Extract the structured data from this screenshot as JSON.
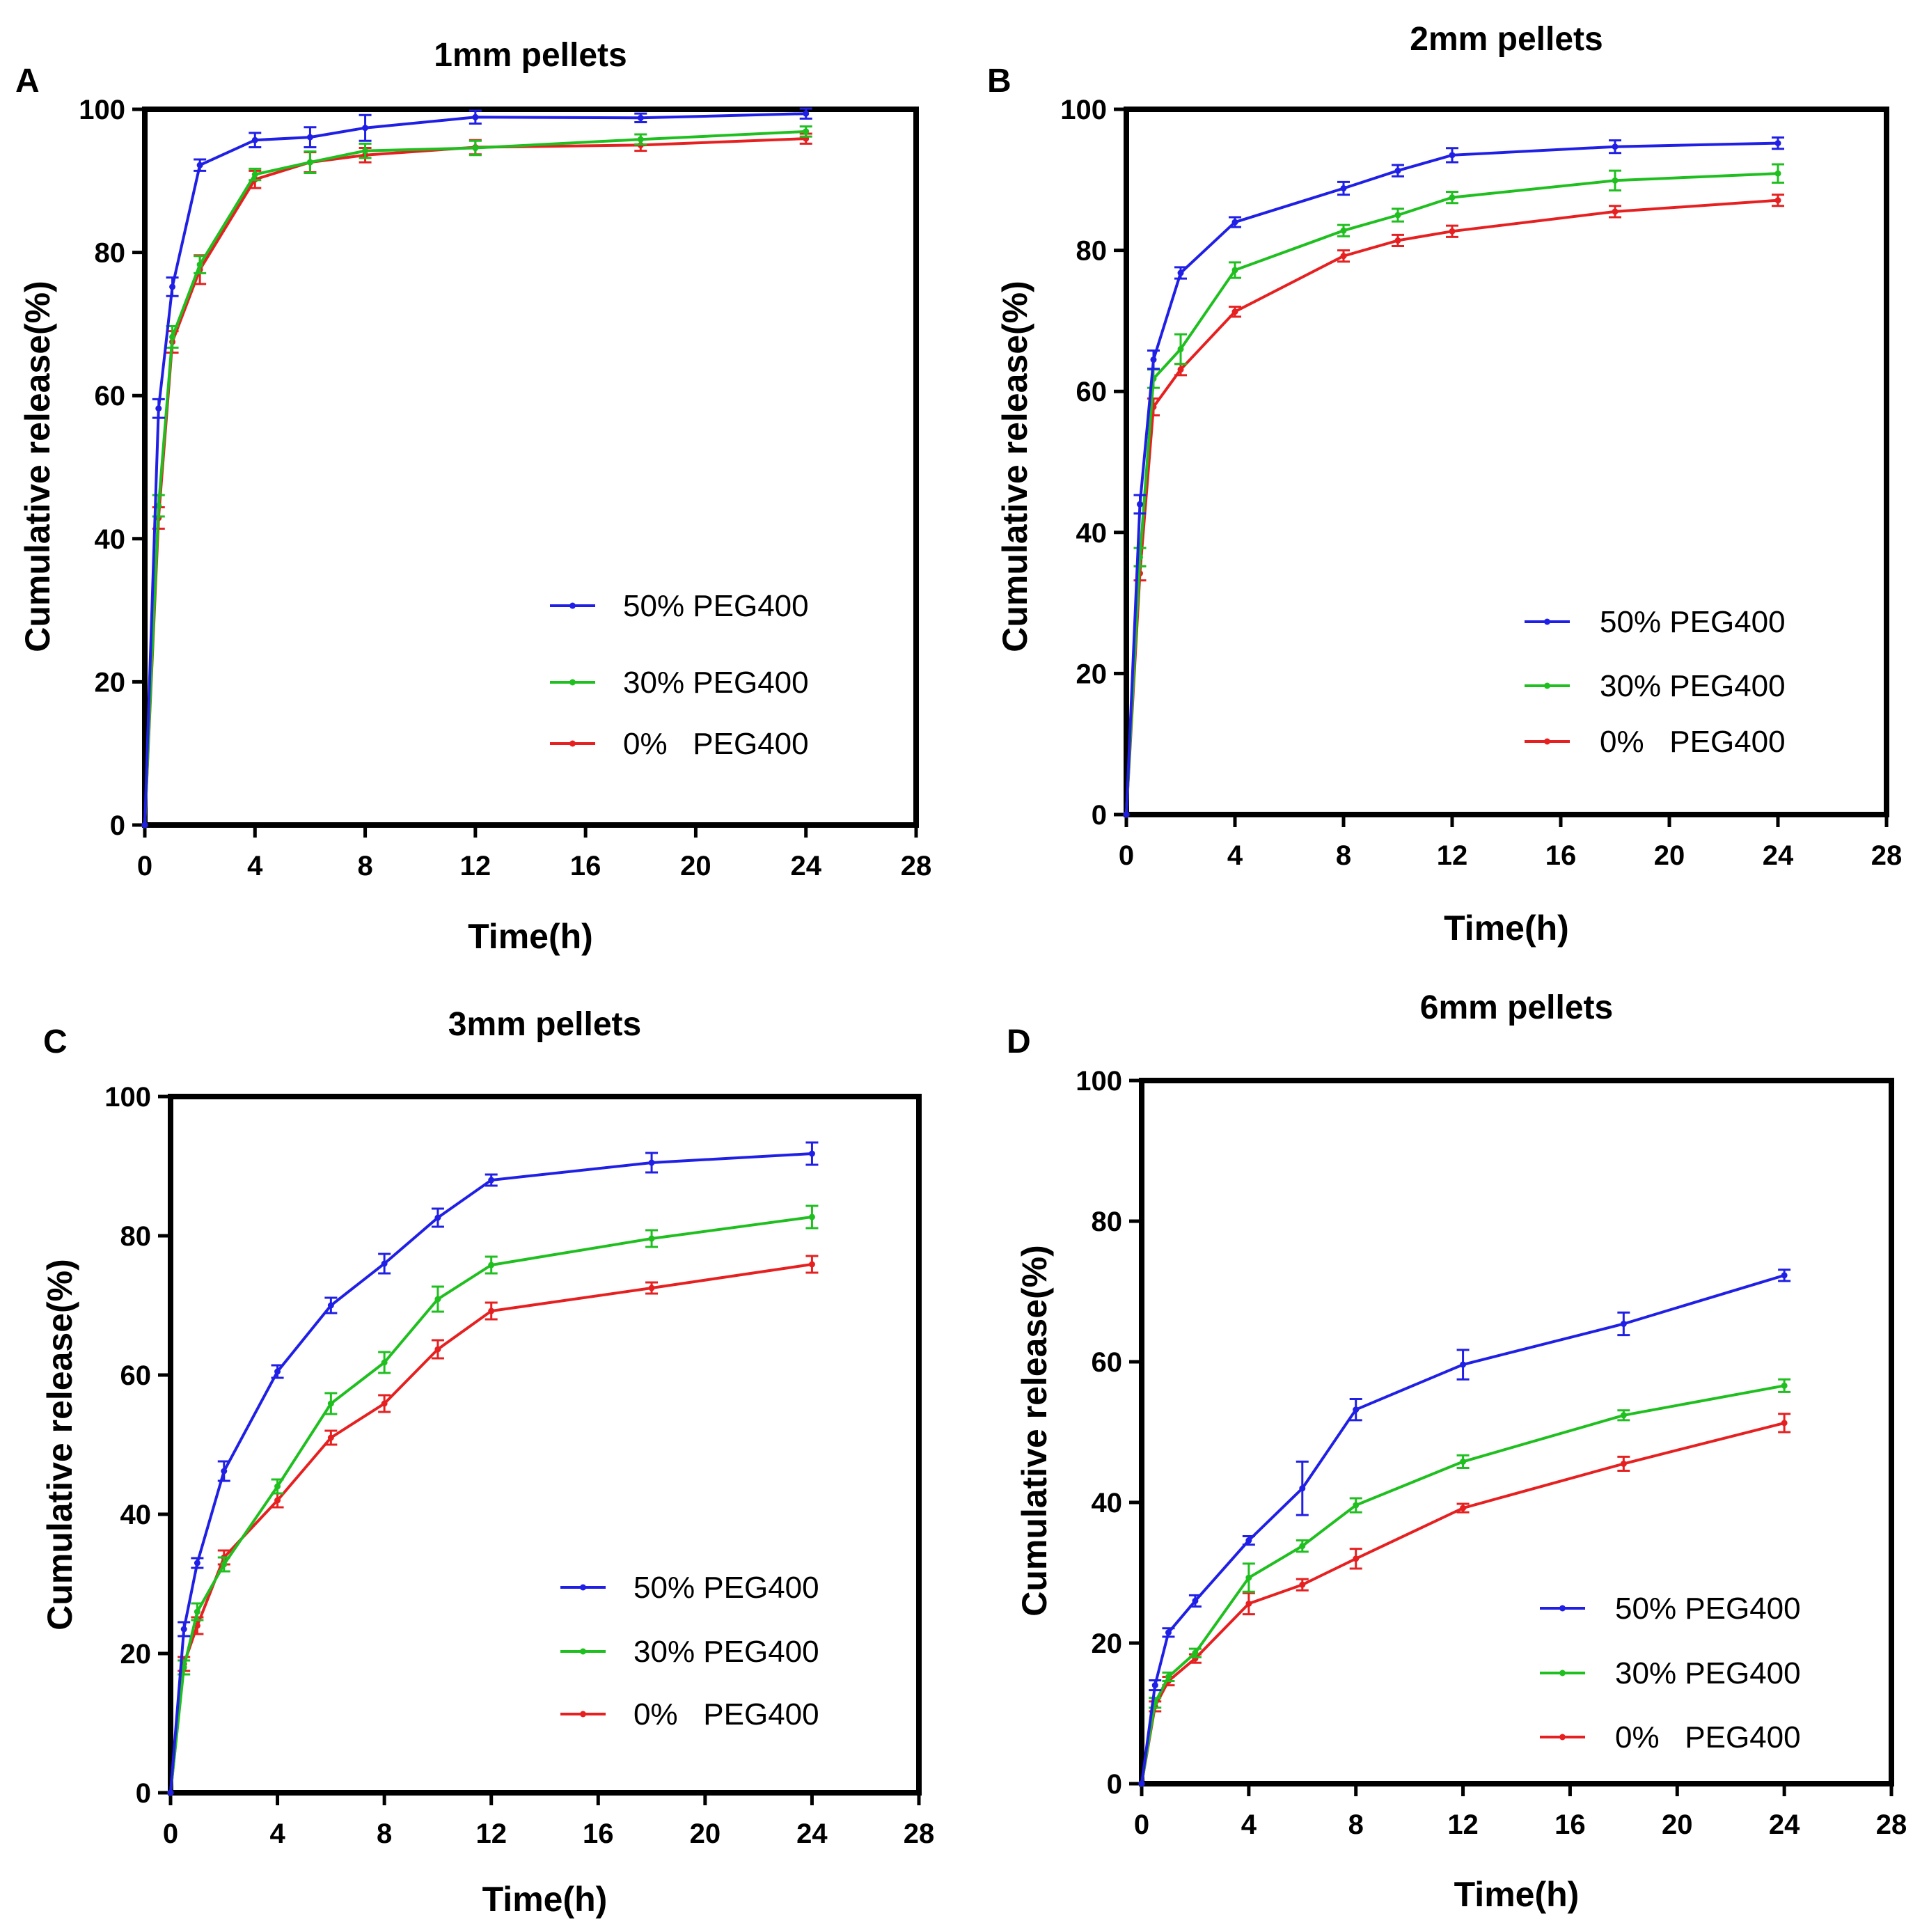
{
  "figure": {
    "panels": [
      {
        "letter": "A"
      },
      {
        "letter": "B"
      },
      {
        "letter": "C"
      },
      {
        "letter": "D"
      }
    ]
  },
  "chart_data": [
    {
      "type": "line",
      "title": "1mm pellets",
      "xlabel": "Time(h)",
      "ylabel": "Cumulative release(%)",
      "xlim": [
        0,
        28
      ],
      "ylim": [
        0,
        100
      ],
      "xticks": [
        0,
        4,
        8,
        12,
        16,
        20,
        24,
        28
      ],
      "yticks": [
        0,
        20,
        40,
        60,
        80,
        100
      ],
      "x": [
        0,
        0.5,
        1,
        2,
        4,
        6,
        8,
        12,
        18,
        24
      ],
      "legend_position": "center-right",
      "series": [
        {
          "name": "50% PEG400",
          "color": "#1f1fe6",
          "values": [
            0,
            58.2,
            75.2,
            92.2,
            95.7,
            96.1,
            97.4,
            98.9,
            98.8,
            99.4
          ],
          "errors": [
            0,
            1.3,
            1.3,
            0.8,
            1.0,
            1.4,
            1.8,
            0.9,
            0.6,
            0.7
          ]
        },
        {
          "name": "30% PEG400",
          "color": "#1fbf1f",
          "values": [
            0,
            44.6,
            68.2,
            78.3,
            90.9,
            92.6,
            94.2,
            94.6,
            95.8,
            96.9
          ],
          "errors": [
            0,
            1.5,
            1.5,
            1.2,
            0.8,
            1.5,
            1.0,
            1.0,
            0.7,
            0.7
          ]
        },
        {
          "name": "0%   PEG400",
          "color": "#e62020",
          "values": [
            0,
            42.9,
            67.5,
            77.6,
            90.2,
            92.6,
            93.6,
            94.7,
            95.0,
            95.9
          ],
          "errors": [
            0,
            1.5,
            1.5,
            2.0,
            1.2,
            1.4,
            1.0,
            1.0,
            0.8,
            0.7
          ]
        }
      ]
    },
    {
      "type": "line",
      "title": "2mm pellets",
      "xlabel": "Time(h)",
      "ylabel": "Cumulative release(%)",
      "xlim": [
        0,
        28
      ],
      "ylim": [
        0,
        100
      ],
      "xticks": [
        0,
        4,
        8,
        12,
        16,
        20,
        24,
        28
      ],
      "yticks": [
        0,
        20,
        40,
        60,
        80,
        100
      ],
      "x": [
        0,
        0.5,
        1,
        2,
        4,
        8,
        10,
        12,
        18,
        24
      ],
      "legend_position": "center-right",
      "series": [
        {
          "name": "50% PEG400",
          "color": "#1f1fe6",
          "values": [
            0,
            44.0,
            64.5,
            76.8,
            84.0,
            88.8,
            91.3,
            93.5,
            94.7,
            95.2
          ],
          "errors": [
            0,
            1.3,
            1.3,
            0.8,
            0.7,
            0.9,
            0.8,
            1.0,
            0.9,
            0.8
          ]
        },
        {
          "name": "30% PEG400",
          "color": "#1fbf1f",
          "values": [
            0,
            36.5,
            61.8,
            66.0,
            77.2,
            82.8,
            85.0,
            87.5,
            89.9,
            90.9
          ],
          "errors": [
            0,
            1.3,
            1.3,
            2.1,
            1.1,
            0.8,
            0.9,
            0.8,
            1.4,
            1.3
          ]
        },
        {
          "name": "0%   PEG400",
          "color": "#e62020",
          "values": [
            0,
            34.2,
            57.8,
            63.1,
            71.3,
            79.2,
            81.4,
            82.7,
            85.5,
            87.1
          ],
          "errors": [
            0,
            1.0,
            1.2,
            0.8,
            0.7,
            0.8,
            0.8,
            0.8,
            0.8,
            0.8
          ]
        }
      ]
    },
    {
      "type": "line",
      "title": "3mm pellets",
      "xlabel": "Time(h)",
      "ylabel": "Cumulative release(%)",
      "xlim": [
        0,
        28
      ],
      "ylim": [
        0,
        100
      ],
      "xticks": [
        0,
        4,
        8,
        12,
        16,
        20,
        24,
        28
      ],
      "yticks": [
        0,
        20,
        40,
        60,
        80,
        100
      ],
      "x": [
        0,
        0.5,
        1,
        2,
        4,
        6,
        8,
        10,
        12,
        18,
        24
      ],
      "legend_position": "bottom-right",
      "series": [
        {
          "name": "50% PEG400",
          "color": "#1f1fe6",
          "values": [
            0,
            23.5,
            33.0,
            46.2,
            60.5,
            70.0,
            76.0,
            82.6,
            88.0,
            90.5,
            91.8
          ],
          "errors": [
            0,
            1.0,
            0.7,
            1.4,
            0.9,
            1.1,
            1.4,
            1.3,
            0.8,
            1.4,
            1.6
          ]
        },
        {
          "name": "30% PEG400",
          "color": "#1fbf1f",
          "values": [
            0,
            18.0,
            26.0,
            32.8,
            44.0,
            55.9,
            61.8,
            70.9,
            75.8,
            79.6,
            82.7
          ],
          "errors": [
            0,
            1.0,
            1.2,
            1.0,
            1.0,
            1.5,
            1.5,
            1.8,
            1.2,
            1.2,
            1.6
          ]
        },
        {
          "name": "0%   PEG400",
          "color": "#e62020",
          "values": [
            0,
            18.5,
            24.0,
            33.8,
            42.0,
            51.0,
            55.9,
            63.7,
            69.2,
            72.5,
            75.9
          ],
          "errors": [
            0,
            1.0,
            1.2,
            1.0,
            1.0,
            1.0,
            1.2,
            1.3,
            1.2,
            0.8,
            1.2
          ]
        }
      ]
    },
    {
      "type": "line",
      "title": "6mm pellets",
      "xlabel": "Time(h)",
      "ylabel": "Cumulative release(%)",
      "xlim": [
        0,
        28
      ],
      "ylim": [
        0,
        100
      ],
      "xticks": [
        0,
        4,
        8,
        12,
        16,
        20,
        24,
        28
      ],
      "yticks": [
        0,
        20,
        40,
        60,
        80,
        100
      ],
      "x": [
        0,
        0.5,
        1,
        2,
        4,
        6,
        8,
        12,
        18,
        24
      ],
      "legend_position": "bottom-right",
      "series": [
        {
          "name": "50% PEG400",
          "color": "#1f1fe6",
          "values": [
            0,
            14.0,
            21.5,
            26.0,
            34.6,
            42.0,
            53.2,
            59.6,
            65.4,
            72.3
          ],
          "errors": [
            0,
            0.7,
            0.6,
            0.8,
            0.6,
            3.8,
            1.5,
            2.1,
            1.6,
            0.8
          ]
        },
        {
          "name": "30% PEG400",
          "color": "#1fbf1f",
          "values": [
            0,
            11.5,
            15.2,
            18.6,
            29.3,
            33.8,
            39.6,
            45.8,
            52.4,
            56.6
          ],
          "errors": [
            0,
            0.7,
            0.6,
            0.6,
            2.0,
            0.8,
            1.0,
            0.9,
            0.7,
            0.9
          ]
        },
        {
          "name": "0%   PEG400",
          "color": "#e62020",
          "values": [
            0,
            11.0,
            14.6,
            17.8,
            25.6,
            28.3,
            32.0,
            39.2,
            45.5,
            51.3
          ],
          "errors": [
            0,
            0.7,
            0.6,
            0.6,
            1.5,
            0.8,
            1.4,
            0.6,
            1.0,
            1.3
          ]
        }
      ]
    }
  ]
}
